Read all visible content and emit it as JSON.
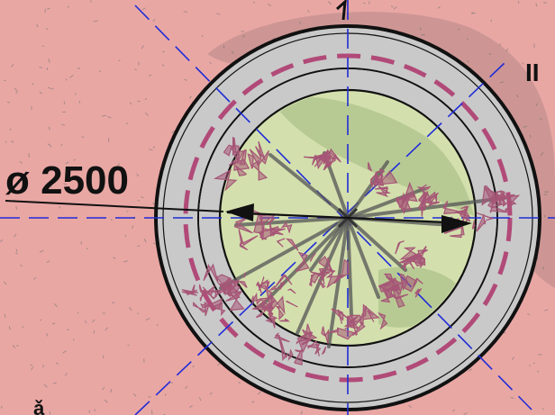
{
  "drawing": {
    "dimension_label": "ø 2500",
    "section_marker": "II",
    "bottom_fragment": "ǎ"
  },
  "colors": {
    "paving": "#e9a7a4",
    "paving_speckle": "#a48a88",
    "curb_ring": "#c9c9c9",
    "planting_bed": "#d3e0ad",
    "root_zone_dash": "#b14a78",
    "centerline": "#1f2cd6",
    "foliage": "#a65676",
    "branches": "#555555",
    "outline": "#111111"
  }
}
